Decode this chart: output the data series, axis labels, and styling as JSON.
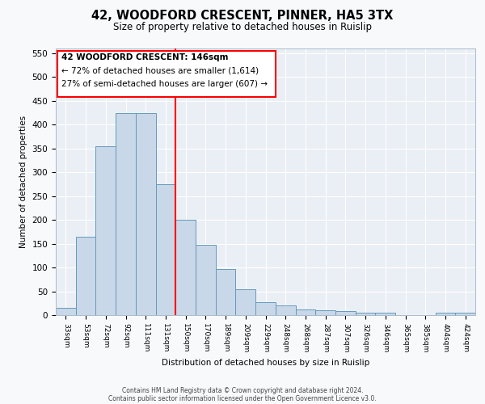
{
  "title1": "42, WOODFORD CRESCENT, PINNER, HA5 3TX",
  "title2": "Size of property relative to detached houses in Ruislip",
  "xlabel": "Distribution of detached houses by size in Ruislip",
  "ylabel": "Number of detached properties",
  "bin_labels": [
    "33sqm",
    "53sqm",
    "72sqm",
    "92sqm",
    "111sqm",
    "131sqm",
    "150sqm",
    "170sqm",
    "189sqm",
    "209sqm",
    "229sqm",
    "248sqm",
    "268sqm",
    "287sqm",
    "307sqm",
    "326sqm",
    "346sqm",
    "365sqm",
    "385sqm",
    "404sqm",
    "424sqm"
  ],
  "bar_heights": [
    15,
    165,
    355,
    425,
    425,
    275,
    200,
    148,
    97,
    55,
    27,
    20,
    12,
    10,
    8,
    5,
    5,
    0,
    0,
    5,
    5
  ],
  "bar_color": "#c8d8e8",
  "bar_edge_color": "#6699bb",
  "annotation_line1": "42 WOODFORD CRESCENT: 146sqm",
  "annotation_line2": "← 72% of detached houses are smaller (1,614)",
  "annotation_line3": "27% of semi-detached houses are larger (607) →",
  "footer1": "Contains HM Land Registry data © Crown copyright and database right 2024.",
  "footer2": "Contains public sector information licensed under the Open Government Licence v3.0.",
  "ylim": [
    0,
    560
  ],
  "background_color": "#eaeff5",
  "plot_background": "#f8f9fb"
}
